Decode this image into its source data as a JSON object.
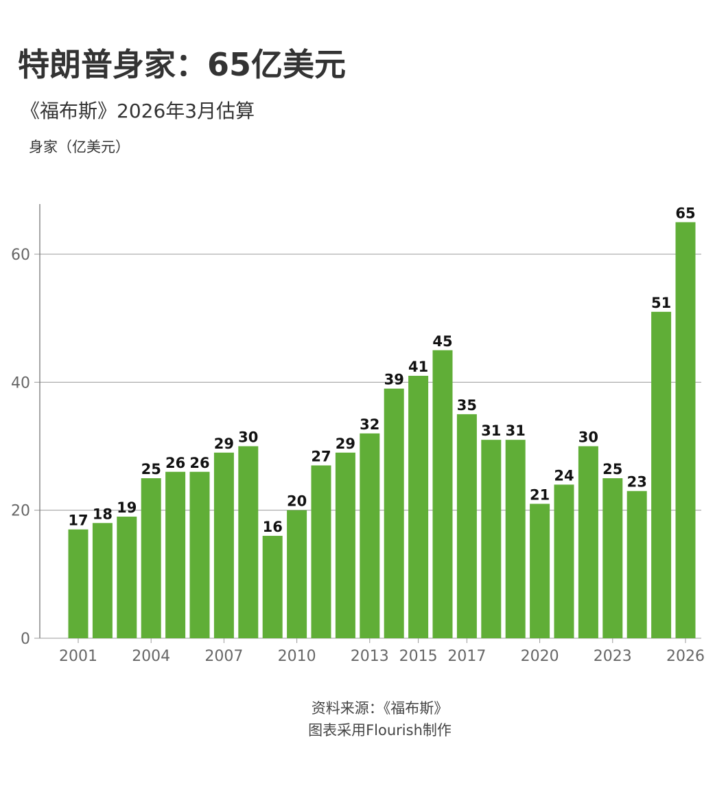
{
  "title": "特朗普身家：65亿美元",
  "subtitle": "《福布斯》2026年3月估算",
  "footer": {
    "source": "资料来源：《福布斯》",
    "credit": "图表采用Flourish制作"
  },
  "chart_data": {
    "type": "bar",
    "title": "特朗普身家：65亿美元",
    "subtitle": "《福布斯》2026年3月估算",
    "ylabel": "身家（亿美元）",
    "xlabel": "",
    "categories": [
      "2001",
      "2002",
      "2003",
      "2004",
      "2005",
      "2006",
      "2007",
      "2008",
      "2009",
      "2010",
      "2011",
      "2012",
      "2013",
      "2014",
      "2015",
      "2016",
      "2017",
      "2018",
      "2019",
      "2020",
      "2021",
      "2022",
      "2023",
      "2024",
      "2025",
      "2026"
    ],
    "values": [
      17,
      18,
      19,
      25,
      26,
      26,
      29,
      30,
      16,
      20,
      27,
      29,
      32,
      39,
      41,
      45,
      35,
      31,
      31,
      21,
      24,
      30,
      25,
      23,
      51,
      65
    ],
    "x_tick_labels": [
      "2001",
      "2004",
      "2007",
      "2010",
      "2013",
      "2015",
      "2017",
      "2020",
      "2023",
      "2026"
    ],
    "y_ticks": [
      0,
      20,
      40,
      60
    ],
    "ylim": [
      0,
      68
    ],
    "grid": true,
    "legend": "none",
    "bar_color": "#60ae37"
  }
}
